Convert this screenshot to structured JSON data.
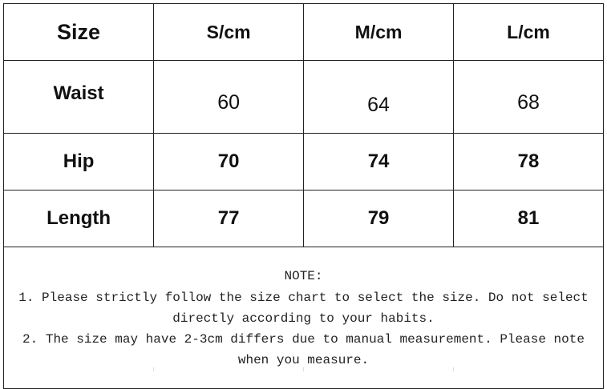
{
  "table": {
    "headers": [
      "Size",
      "S/cm",
      "M/cm",
      "L/cm"
    ],
    "rows": [
      {
        "label": "Waist",
        "values": [
          "60",
          "64",
          "68"
        ]
      },
      {
        "label": "Hip",
        "values": [
          "70",
          "74",
          "78"
        ]
      },
      {
        "label": "Length",
        "values": [
          "77",
          "79",
          "81"
        ]
      }
    ]
  },
  "note": {
    "title": "NOTE:",
    "line1": "1. Please strictly follow the size chart to select the size. Do not select directly according to your habits.",
    "line2": "2. The size may have 2-3cm differs due to manual measurement. Please note when you measure."
  }
}
